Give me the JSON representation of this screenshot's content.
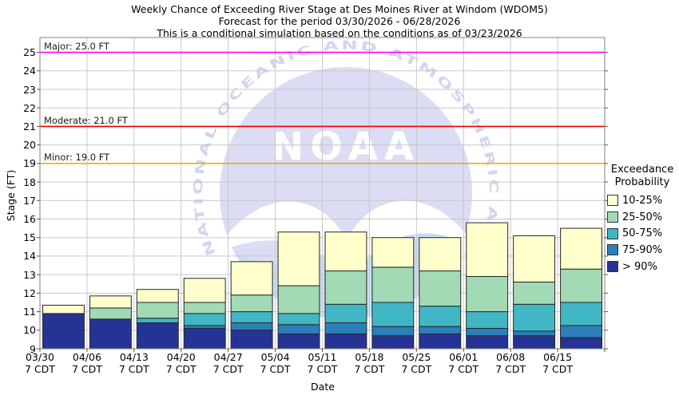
{
  "title": {
    "line1": "Weekly Chance of Exceeding River Stage at Des Moines River at Windom (WDOM5)",
    "line2": "Forecast for the period 03/30/2026 - 06/28/2026",
    "line3": "This is a conditional simulation based on the conditions as of 03/23/2026"
  },
  "y_axis": {
    "label": "Stage (FT)",
    "tick_min": 9,
    "tick_max": 25
  },
  "x_axis": {
    "label": "Date",
    "tick_line2": "7 CDT"
  },
  "thresholds": [
    {
      "name": "major-flood-line",
      "label": "Major: 25.0 FT",
      "value": 25.0,
      "color": "#ff00ff"
    },
    {
      "name": "moderate-flood-line",
      "label": "Moderate: 21.0 FT",
      "value": 21.0,
      "color": "#ee0000"
    },
    {
      "name": "minor-flood-line",
      "label": "Minor: 19.0 FT",
      "value": 19.0,
      "color": "#e3b200"
    }
  ],
  "legend": {
    "title_line1": "Exceedance",
    "title_line2": "Probability",
    "items": [
      {
        "label": "10-25%",
        "color": "#ffffcc"
      },
      {
        "label": "25-50%",
        "color": "#a1dab4"
      },
      {
        "label": "50-75%",
        "color": "#41b6c4"
      },
      {
        "label": "75-90%",
        "color": "#2c7fb8"
      },
      {
        "label": "> 90%",
        "color": "#253494"
      }
    ]
  },
  "watermark": {
    "ring_text": "NATIONAL OCEANIC AND ATMOSPHERIC ADMINISTRATION",
    "center_text": "NOAA",
    "circle_color": "#dcdcf4",
    "sea_color": "#c9def5",
    "gull_color": "#ffffff",
    "ring_text_color": "#d4d4ef"
  },
  "chart_data": {
    "type": "bar",
    "subtype": "stacked-exceedance-probability",
    "title": "Weekly Chance of Exceeding River Stage at Des Moines River at Windom (WDOM5)",
    "xlabel": "Date",
    "ylabel": "Stage (FT)",
    "ylim": [
      9,
      25.8
    ],
    "baseline": 9,
    "grid": true,
    "legend_position": "right",
    "categories": [
      "03/30",
      "04/06",
      "04/13",
      "04/20",
      "04/27",
      "05/04",
      "05/11",
      "05/18",
      "05/25",
      "06/01",
      "06/08",
      "06/15"
    ],
    "series_note": "values are the stage (FT) at the TOP of each probability band, stacked bottom-to-top from baseline 9 FT",
    "series": [
      {
        "name": "> 90%",
        "color": "#253494",
        "tops": [
          10.9,
          10.6,
          10.4,
          10.1,
          10.0,
          9.8,
          9.8,
          9.7,
          9.8,
          9.7,
          9.7,
          9.6
        ]
      },
      {
        "name": "75-90%",
        "color": "#2c7fb8",
        "tops": [
          10.9,
          10.6,
          10.4,
          10.25,
          10.4,
          10.3,
          10.4,
          10.2,
          10.2,
          10.1,
          9.95,
          10.25
        ]
      },
      {
        "name": "50-75%",
        "color": "#41b6c4",
        "tops": [
          10.9,
          10.6,
          10.65,
          10.9,
          11.0,
          10.9,
          11.4,
          11.5,
          11.3,
          11.0,
          11.4,
          11.5
        ]
      },
      {
        "name": "25-50%",
        "color": "#a1dab4",
        "tops": [
          10.9,
          11.2,
          11.5,
          11.5,
          11.9,
          12.4,
          13.2,
          13.4,
          13.2,
          12.9,
          12.6,
          13.3
        ]
      },
      {
        "name": "10-25%",
        "color": "#ffffcc",
        "tops": [
          11.35,
          11.85,
          12.2,
          12.8,
          13.7,
          15.3,
          15.3,
          15.0,
          15.0,
          15.8,
          15.1,
          15.5
        ]
      }
    ],
    "thresholds": [
      {
        "label": "Major: 25.0 FT",
        "value": 25.0
      },
      {
        "label": "Moderate: 21.0 FT",
        "value": 21.0
      },
      {
        "label": "Minor: 19.0 FT",
        "value": 19.0
      }
    ]
  }
}
